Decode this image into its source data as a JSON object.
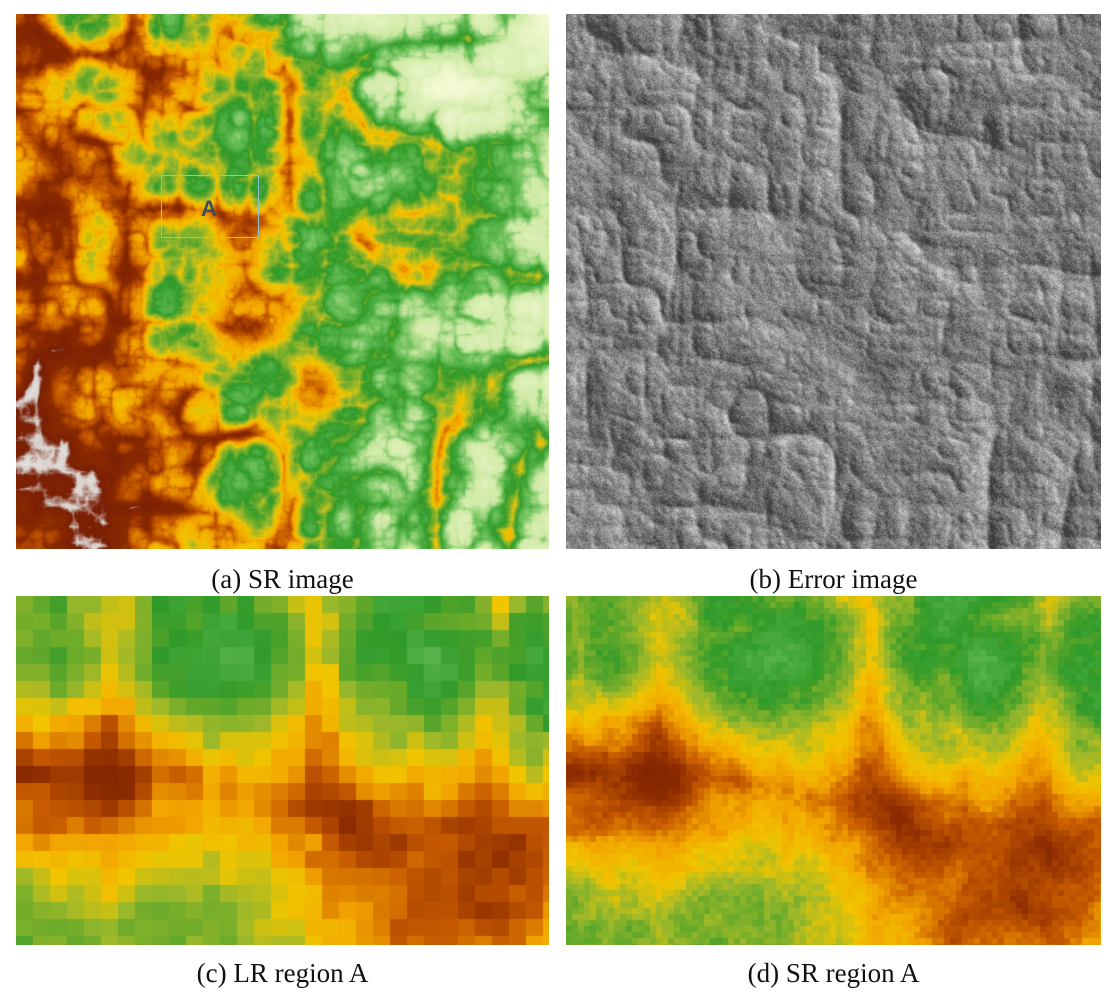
{
  "figure": {
    "panels": [
      {
        "id": "a",
        "caption": "(a) SR image",
        "kind": "dem-colormap"
      },
      {
        "id": "b",
        "caption": "(b) Error image",
        "kind": "grayscale-error"
      },
      {
        "id": "c",
        "caption": "(c) LR region A",
        "kind": "dem-colormap-lowres"
      },
      {
        "id": "d",
        "caption": "(d) SR region A",
        "kind": "dem-colormap-highres"
      }
    ],
    "region_marker": {
      "label": "A",
      "color": "#8fc3d6"
    },
    "colormap": [
      "#f5f5f5",
      "#7a1c00",
      "#b84a00",
      "#f2a400",
      "#f5c800",
      "#2f9a2a",
      "#7ac66a",
      "#e9f5c0"
    ]
  }
}
